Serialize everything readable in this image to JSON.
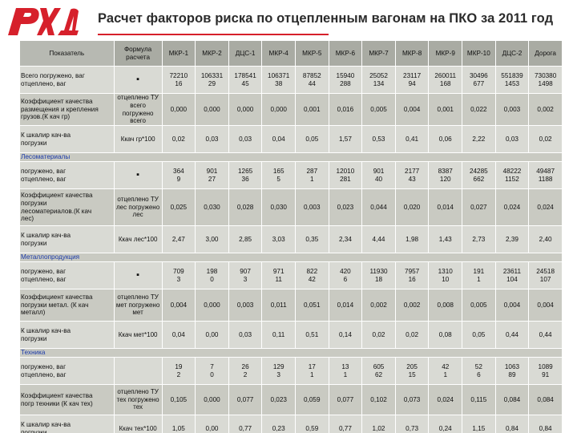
{
  "title": "Расчет факторов риска по отцепленным вагонам на ПКО за 2011 год",
  "logo": {
    "name": "rzd-logo",
    "color": "#d6202b"
  },
  "table": {
    "headers": [
      "Показатель",
      "Формула расчета",
      "МКР-1",
      "МКР-2",
      "ДЦС-1",
      "МКР-4",
      "МКР-5",
      "МКР-6",
      "МКР-7",
      "МКР-8",
      "МКР-9",
      "МКР-10",
      "ДЦС-2",
      "Дорога"
    ],
    "rows": [
      {
        "label": [
          "Всего погружено, ваг",
          "отцеплено, ваг"
        ],
        "formula": "▪",
        "values": [
          [
            "72210",
            "16"
          ],
          [
            "106331",
            "29"
          ],
          [
            "178541",
            "45"
          ],
          [
            "106371",
            "38"
          ],
          [
            "87852",
            "44"
          ],
          [
            "15940",
            "288"
          ],
          [
            "25052",
            "134"
          ],
          [
            "23117",
            "94"
          ],
          [
            "260011",
            "168"
          ],
          [
            "30496",
            "677"
          ],
          [
            "551839",
            "1453"
          ],
          [
            "730380",
            "1498"
          ]
        ]
      },
      {
        "label": [
          "Коэффициент качества",
          "размещения и крепления",
          "грузов.(К кач гр)"
        ],
        "formula": "отцеплено ТУ всего погружено всего",
        "values": [
          [
            "0,000"
          ],
          [
            "0,000"
          ],
          [
            "0,000"
          ],
          [
            "0,000"
          ],
          [
            "0,001"
          ],
          [
            "0,016"
          ],
          [
            "0,005"
          ],
          [
            "0,004"
          ],
          [
            "0,001"
          ],
          [
            "0,022"
          ],
          [
            "0,003"
          ],
          [
            "0,002"
          ]
        ]
      },
      {
        "label": [
          "К шкалир кач-ва",
          "погрузки"
        ],
        "formula": "Ккач гр*100",
        "values": [
          [
            "0,02"
          ],
          [
            "0,03"
          ],
          [
            "0,03"
          ],
          [
            "0,04"
          ],
          [
            "0,05"
          ],
          [
            "1,57"
          ],
          [
            "0,53"
          ],
          [
            "0,41"
          ],
          [
            "0,06"
          ],
          [
            "2,22"
          ],
          [
            "0,03"
          ],
          [
            "0,02"
          ]
        ]
      },
      {
        "section": "Лесоматериалы"
      },
      {
        "label": [
          "погружено, ваг",
          "отцеплено, ваг"
        ],
        "formula": "▪",
        "values": [
          [
            "364",
            "9"
          ],
          [
            "901",
            "27"
          ],
          [
            "1265",
            "36"
          ],
          [
            "165",
            "5"
          ],
          [
            "287",
            "1"
          ],
          [
            "12010",
            "281"
          ],
          [
            "901",
            "40"
          ],
          [
            "2177",
            "43"
          ],
          [
            "8387",
            "120"
          ],
          [
            "24285",
            "662"
          ],
          [
            "48222",
            "1152"
          ],
          [
            "49487",
            "1188"
          ]
        ]
      },
      {
        "label": [
          "Коэффициент качества",
          "погрузки",
          "лесоматериалов.(К кач",
          "лес)"
        ],
        "formula": "отцеплено ТУ лес погружено лес",
        "values": [
          [
            "0,025"
          ],
          [
            "0,030"
          ],
          [
            "0,028"
          ],
          [
            "0,030"
          ],
          [
            "0,003"
          ],
          [
            "0,023"
          ],
          [
            "0,044"
          ],
          [
            "0,020"
          ],
          [
            "0,014"
          ],
          [
            "0,027"
          ],
          [
            "0,024"
          ],
          [
            "0,024"
          ]
        ]
      },
      {
        "label": [
          "К шкалир кач-ва",
          "погрузки"
        ],
        "formula": "Ккач лес*100",
        "values": [
          [
            "2,47"
          ],
          [
            "3,00"
          ],
          [
            "2,85"
          ],
          [
            "3,03"
          ],
          [
            "0,35"
          ],
          [
            "2,34"
          ],
          [
            "4,44"
          ],
          [
            "1,98"
          ],
          [
            "1,43"
          ],
          [
            "2,73"
          ],
          [
            "2,39"
          ],
          [
            "2,40"
          ]
        ]
      },
      {
        "section": "Металлопродукция"
      },
      {
        "label": [
          "погружено, ваг",
          "отцеплено, ваг"
        ],
        "formula": "▪",
        "values": [
          [
            "709",
            "3"
          ],
          [
            "198",
            "0"
          ],
          [
            "907",
            "3"
          ],
          [
            "971",
            "11"
          ],
          [
            "822",
            "42"
          ],
          [
            "420",
            "6"
          ],
          [
            "11930",
            "18"
          ],
          [
            "7957",
            "16"
          ],
          [
            "1310",
            "10"
          ],
          [
            "191",
            "1"
          ],
          [
            "23611",
            "104"
          ],
          [
            "24518",
            "107"
          ]
        ]
      },
      {
        "label": [
          "Коэффициент качества",
          "погрузки метал. (К кач",
          "металл)"
        ],
        "formula": "отцеплено ТУ мет погружено мет",
        "values": [
          [
            "0,004"
          ],
          [
            "0,000"
          ],
          [
            "0,003"
          ],
          [
            "0,011"
          ],
          [
            "0,051"
          ],
          [
            "0,014"
          ],
          [
            "0,002"
          ],
          [
            "0,002"
          ],
          [
            "0,008"
          ],
          [
            "0,005"
          ],
          [
            "0,004"
          ],
          [
            "0,004"
          ]
        ]
      },
      {
        "label": [
          "К шкалир кач-ва",
          "погрузки"
        ],
        "formula": "Ккач мет*100",
        "values": [
          [
            "0,04"
          ],
          [
            "0,00"
          ],
          [
            "0,03"
          ],
          [
            "0,11"
          ],
          [
            "0,51"
          ],
          [
            "0,14"
          ],
          [
            "0,02"
          ],
          [
            "0,02"
          ],
          [
            "0,08"
          ],
          [
            "0,05"
          ],
          [
            "0,44"
          ],
          [
            "0,44"
          ]
        ]
      },
      {
        "section": "Техника"
      },
      {
        "label": [
          "погружено, ваг",
          "отцеплено, ваг"
        ],
        "formula": "",
        "values": [
          [
            "19",
            "2"
          ],
          [
            "7",
            "0"
          ],
          [
            "26",
            "2"
          ],
          [
            "129",
            "3"
          ],
          [
            "17",
            "1"
          ],
          [
            "13",
            "1"
          ],
          [
            "605",
            "62"
          ],
          [
            "205",
            "15"
          ],
          [
            "42",
            "1"
          ],
          [
            "52",
            "6"
          ],
          [
            "1063",
            "89"
          ],
          [
            "1089",
            "91"
          ]
        ]
      },
      {
        "label": [
          "Коэффициент качества",
          "погр техники (К кач тех)"
        ],
        "formula": "отцеплено ТУ тех погружено тех",
        "values": [
          [
            "0,105"
          ],
          [
            "0,000"
          ],
          [
            "0,077"
          ],
          [
            "0,023"
          ],
          [
            "0,059"
          ],
          [
            "0,077"
          ],
          [
            "0,102"
          ],
          [
            "0,073"
          ],
          [
            "0,024"
          ],
          [
            "0,115"
          ],
          [
            "0,084"
          ],
          [
            "0,084"
          ]
        ]
      },
      {
        "label": [
          "К шкалир кач-ва",
          "погрузки"
        ],
        "formula": "Ккач тех*100",
        "values": [
          [
            "1,05"
          ],
          [
            "0,00"
          ],
          [
            "0,77"
          ],
          [
            "0,23"
          ],
          [
            "0,59"
          ],
          [
            "0,77"
          ],
          [
            "1,02"
          ],
          [
            "0,73"
          ],
          [
            "0,24"
          ],
          [
            "1,15"
          ],
          [
            "0,84"
          ],
          [
            "0,84"
          ]
        ]
      }
    ]
  }
}
